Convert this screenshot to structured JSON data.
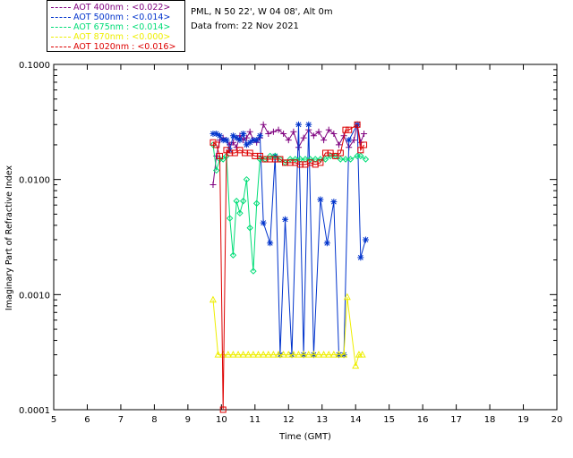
{
  "header": {
    "site": "PML, N 50 22', W 04 08', Alt 0m",
    "date_line": "Data from: 22 Nov 2021"
  },
  "legend": [
    {
      "label": "AOT  400nm : <0.022>",
      "color": "#7f007f"
    },
    {
      "label": "AOT  500nm : <0.014>",
      "color": "#0033cc"
    },
    {
      "label": "AOT  675nm : <0.014>",
      "color": "#00dd77"
    },
    {
      "label": "AOT  870nm : <0.000>",
      "color": "#eeee00"
    },
    {
      "label": "AOT 1020nm : <0.016>",
      "color": "#dd0000"
    }
  ],
  "chart_data": {
    "type": "line",
    "title": "",
    "xlabel": "Time (GMT)",
    "ylabel": "Imaginary Part of Refractive Index",
    "xlim": [
      5,
      20
    ],
    "ylim": [
      0.0001,
      0.1
    ],
    "yscale": "log",
    "x_ticks": [
      "5",
      "6",
      "7",
      "8",
      "9",
      "10",
      "11",
      "12",
      "13",
      "14",
      "15",
      "16",
      "17",
      "18",
      "19",
      "20"
    ],
    "y_ticks": [
      {
        "value": 0.0001,
        "label": "0.0001"
      },
      {
        "value": 0.001,
        "label": "0.0010"
      },
      {
        "value": 0.01,
        "label": "0.0100"
      },
      {
        "value": 0.1,
        "label": "0.1000"
      }
    ],
    "series": [
      {
        "name": "AOT  400nm",
        "color": "#7f007f",
        "marker": "plus",
        "x": [
          9.75,
          9.85,
          9.95,
          10.05,
          10.15,
          10.25,
          10.35,
          10.45,
          10.55,
          10.65,
          10.75,
          10.85,
          10.95,
          11.05,
          11.15,
          11.25,
          11.4,
          11.55,
          11.7,
          11.85,
          12.0,
          12.15,
          12.3,
          12.45,
          12.6,
          12.75,
          12.9,
          13.05,
          13.2,
          13.35,
          13.5,
          13.65,
          13.8,
          13.95,
          14.05,
          14.15,
          14.25
        ],
        "y": [
          0.009,
          0.016,
          0.022,
          0.023,
          0.022,
          0.02,
          0.021,
          0.019,
          0.024,
          0.022,
          0.023,
          0.026,
          0.022,
          0.021,
          0.023,
          0.03,
          0.025,
          0.026,
          0.027,
          0.025,
          0.022,
          0.026,
          0.019,
          0.023,
          0.027,
          0.024,
          0.026,
          0.022,
          0.027,
          0.025,
          0.02,
          0.024,
          0.019,
          0.022,
          0.03,
          0.021,
          0.025
        ]
      },
      {
        "name": "AOT  500nm",
        "color": "#0033cc",
        "marker": "asterisk",
        "x": [
          9.75,
          9.85,
          9.95,
          10.05,
          10.15,
          10.25,
          10.35,
          10.45,
          10.55,
          10.65,
          10.75,
          10.85,
          10.95,
          11.05,
          11.15,
          11.25,
          11.45,
          11.6,
          11.75,
          11.9,
          12.1,
          12.3,
          12.45,
          12.6,
          12.75,
          12.95,
          13.15,
          13.35,
          13.5,
          13.65,
          13.8,
          14.05,
          14.15,
          14.3
        ],
        "y": [
          0.025,
          0.025,
          0.024,
          0.022,
          0.022,
          0.018,
          0.024,
          0.023,
          0.022,
          0.025,
          0.02,
          0.021,
          0.022,
          0.022,
          0.024,
          0.0042,
          0.0028,
          0.016,
          0.0003,
          0.0045,
          0.0003,
          0.03,
          0.0003,
          0.03,
          0.0003,
          0.0067,
          0.0028,
          0.0064,
          0.0003,
          0.0003,
          0.022,
          0.03,
          0.0021,
          0.003
        ]
      },
      {
        "name": "AOT  675nm",
        "color": "#00dd77",
        "marker": "diamond",
        "x": [
          9.75,
          9.85,
          9.95,
          10.05,
          10.15,
          10.25,
          10.35,
          10.45,
          10.55,
          10.65,
          10.75,
          10.85,
          10.95,
          11.05,
          11.15,
          11.3,
          11.45,
          11.6,
          11.75,
          11.9,
          12.05,
          12.2,
          12.35,
          12.5,
          12.65,
          12.8,
          12.95,
          13.1,
          13.25,
          13.4,
          13.55,
          13.7,
          13.85,
          14.05,
          14.15,
          14.3
        ],
        "y": [
          0.02,
          0.012,
          0.015,
          0.015,
          0.016,
          0.0046,
          0.0022,
          0.0065,
          0.0051,
          0.0065,
          0.01,
          0.0038,
          0.0016,
          0.0062,
          0.015,
          0.015,
          0.016,
          0.016,
          0.015,
          0.014,
          0.015,
          0.015,
          0.015,
          0.015,
          0.015,
          0.015,
          0.015,
          0.015,
          0.016,
          0.016,
          0.015,
          0.015,
          0.015,
          0.016,
          0.016,
          0.015
        ]
      },
      {
        "name": "AOT  870nm",
        "color": "#eeee00",
        "marker": "triangle",
        "x": [
          9.75,
          9.9,
          10.05,
          10.2,
          10.35,
          10.5,
          10.65,
          10.8,
          10.95,
          11.1,
          11.25,
          11.4,
          11.55,
          11.7,
          11.85,
          12.0,
          12.15,
          12.3,
          12.45,
          12.6,
          12.75,
          12.9,
          13.05,
          13.2,
          13.35,
          13.5,
          13.65,
          13.75,
          14.0,
          14.1,
          14.2
        ],
        "y": [
          0.0009,
          0.0003,
          0.0003,
          0.0003,
          0.0003,
          0.0003,
          0.0003,
          0.0003,
          0.0003,
          0.0003,
          0.0003,
          0.0003,
          0.0003,
          0.0003,
          0.0003,
          0.0003,
          0.0003,
          0.0003,
          0.0003,
          0.0003,
          0.0003,
          0.0003,
          0.0003,
          0.0003,
          0.0003,
          0.0003,
          0.0003,
          0.00095,
          0.00024,
          0.0003,
          0.0003
        ]
      },
      {
        "name": "AOT 1020nm",
        "color": "#dd0000",
        "marker": "square",
        "x": [
          9.75,
          9.85,
          9.95,
          10.05,
          10.15,
          10.25,
          10.4,
          10.55,
          10.7,
          10.85,
          11.0,
          11.15,
          11.3,
          11.45,
          11.6,
          11.75,
          11.9,
          12.05,
          12.2,
          12.35,
          12.5,
          12.65,
          12.8,
          12.95,
          13.1,
          13.25,
          13.4,
          13.55,
          13.7,
          13.8,
          14.05,
          14.15,
          14.25
        ],
        "y": [
          0.021,
          0.02,
          0.016,
          0.0001,
          0.018,
          0.017,
          0.017,
          0.018,
          0.017,
          0.017,
          0.016,
          0.016,
          0.015,
          0.015,
          0.015,
          0.015,
          0.014,
          0.014,
          0.014,
          0.0135,
          0.0135,
          0.014,
          0.0135,
          0.014,
          0.017,
          0.017,
          0.016,
          0.017,
          0.027,
          0.027,
          0.03,
          0.018,
          0.02
        ]
      }
    ]
  }
}
